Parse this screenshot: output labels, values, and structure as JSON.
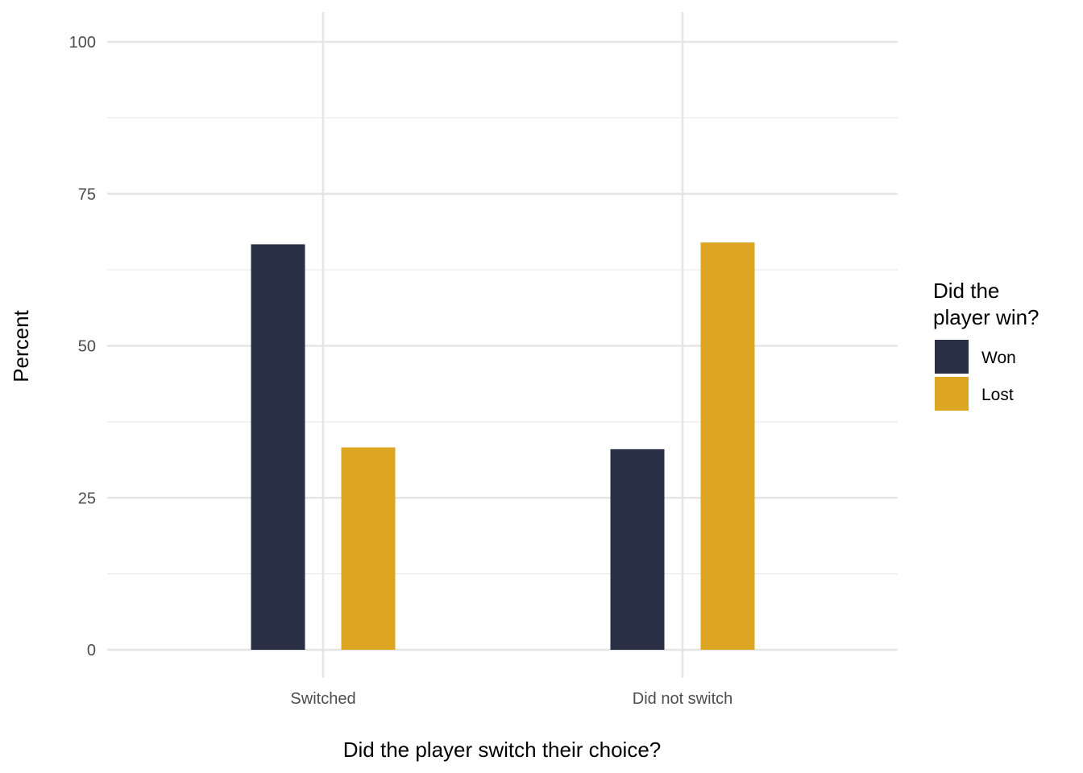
{
  "chart_data": {
    "type": "bar",
    "title": "",
    "xlabel": "Did the player switch their choice?",
    "ylabel": "Percent",
    "categories": [
      "Switched",
      "Did not switch"
    ],
    "series": [
      {
        "name": "Won",
        "values": [
          66.7,
          33.0
        ],
        "color": "#2a3146"
      },
      {
        "name": "Lost",
        "values": [
          33.3,
          67.0
        ],
        "color": "#dca622"
      }
    ],
    "ylim": [
      0,
      100
    ],
    "yticks": [
      0,
      25,
      50,
      75,
      100
    ],
    "grid": true,
    "legend": {
      "title_lines": [
        "Did the",
        "player win?"
      ],
      "placement": "right"
    }
  }
}
